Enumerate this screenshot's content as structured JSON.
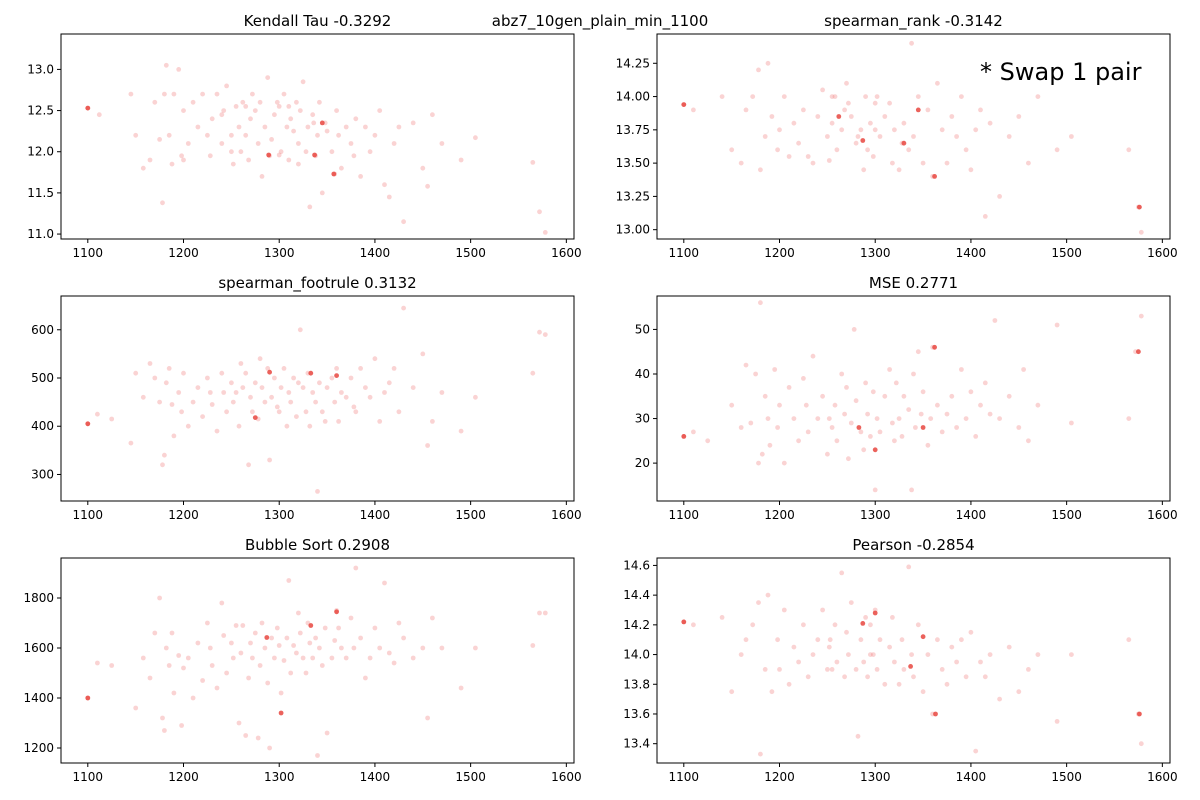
{
  "figure": {
    "suptitle": "abz7_10gen_plain_min_1100",
    "annotation": "* Swap 1 pair",
    "point_color": "#f08080",
    "highlight_color": "#e8473f"
  },
  "chart_data": [
    {
      "type": "scatter",
      "title": "Kendall Tau -0.3292",
      "xlim": [
        1072,
        1608
      ],
      "ylim": [
        10.94,
        13.43
      ],
      "xticks": [
        1100,
        1200,
        1300,
        1400,
        1500,
        1600
      ],
      "yticks": [
        11.0,
        11.5,
        12.0,
        12.5,
        13.0
      ],
      "ytick_decimals": 1,
      "x": [
        1100,
        1112,
        1145,
        1150,
        1158,
        1165,
        1170,
        1175,
        1178,
        1180,
        1182,
        1185,
        1188,
        1190,
        1195,
        1198,
        1200,
        1205,
        1210,
        1215,
        1220,
        1225,
        1228,
        1230,
        1235,
        1240,
        1242,
        1245,
        1250,
        1252,
        1255,
        1258,
        1260,
        1262,
        1265,
        1268,
        1270,
        1272,
        1275,
        1278,
        1280,
        1282,
        1285,
        1288,
        1290,
        1292,
        1295,
        1298,
        1300,
        1302,
        1305,
        1308,
        1310,
        1312,
        1315,
        1318,
        1320,
        1322,
        1325,
        1328,
        1330,
        1332,
        1335,
        1338,
        1340,
        1342,
        1345,
        1348,
        1350,
        1355,
        1358,
        1360,
        1362,
        1365,
        1370,
        1375,
        1378,
        1380,
        1385,
        1390,
        1395,
        1400,
        1405,
        1410,
        1415,
        1420,
        1425,
        1430,
        1440,
        1450,
        1455,
        1460,
        1470,
        1490,
        1505,
        1565,
        1572,
        1578,
        1200,
        1250,
        1300,
        1320,
        1336,
        1310,
        1265,
        1240
      ],
      "y": [
        12.53,
        12.45,
        12.7,
        12.2,
        11.8,
        11.9,
        12.6,
        12.15,
        11.38,
        12.7,
        13.05,
        12.2,
        11.85,
        12.7,
        13.0,
        11.95,
        12.5,
        12.1,
        12.6,
        12.3,
        12.7,
        12.2,
        11.95,
        12.4,
        12.7,
        12.1,
        12.5,
        12.8,
        12.2,
        11.85,
        12.55,
        12.3,
        12.0,
        12.6,
        12.2,
        11.9,
        12.4,
        12.7,
        12.5,
        12.1,
        12.6,
        11.7,
        12.3,
        12.9,
        11.95,
        12.15,
        12.45,
        12.6,
        12.55,
        12.0,
        12.7,
        12.3,
        11.9,
        12.4,
        12.25,
        12.6,
        12.1,
        12.5,
        12.85,
        12.0,
        12.3,
        11.33,
        12.45,
        11.95,
        12.2,
        12.6,
        11.5,
        12.35,
        12.25,
        12.0,
        11.73,
        12.5,
        12.2,
        11.8,
        12.3,
        12.1,
        11.95,
        12.4,
        11.7,
        12.3,
        12.0,
        12.2,
        12.5,
        11.6,
        11.45,
        12.1,
        12.3,
        11.15,
        12.35,
        11.8,
        11.58,
        12.45,
        12.1,
        11.9,
        12.17,
        11.87,
        11.27,
        11.02,
        11.9,
        12.0,
        11.96,
        11.85,
        12.35,
        12.55,
        12.55,
        12.45
      ],
      "highlight": {
        "x": [
          1100,
          1289,
          1337,
          1345,
          1357
        ],
        "y": [
          12.53,
          11.96,
          11.96,
          12.35,
          11.73
        ]
      }
    },
    {
      "type": "scatter",
      "title": "spearman_rank -0.3142",
      "xlim": [
        1072,
        1608
      ],
      "ylim": [
        12.93,
        14.47
      ],
      "xticks": [
        1100,
        1200,
        1300,
        1400,
        1500,
        1600
      ],
      "yticks": [
        13.0,
        13.25,
        13.5,
        13.75,
        14.0,
        14.25
      ],
      "ytick_decimals": 2,
      "x": [
        1100,
        1110,
        1140,
        1150,
        1160,
        1165,
        1172,
        1178,
        1180,
        1185,
        1188,
        1192,
        1198,
        1200,
        1205,
        1210,
        1215,
        1220,
        1225,
        1230,
        1235,
        1240,
        1245,
        1250,
        1252,
        1255,
        1258,
        1260,
        1265,
        1268,
        1270,
        1272,
        1275,
        1280,
        1282,
        1285,
        1288,
        1290,
        1292,
        1295,
        1298,
        1300,
        1302,
        1305,
        1310,
        1315,
        1318,
        1320,
        1325,
        1328,
        1330,
        1335,
        1338,
        1340,
        1345,
        1350,
        1355,
        1360,
        1365,
        1370,
        1375,
        1380,
        1385,
        1390,
        1395,
        1400,
        1405,
        1410,
        1415,
        1420,
        1430,
        1440,
        1450,
        1460,
        1470,
        1490,
        1505,
        1565,
        1575,
        1578,
        1255,
        1300
      ],
      "y": [
        13.94,
        13.9,
        14.0,
        13.6,
        13.5,
        13.9,
        14.0,
        14.2,
        13.45,
        13.7,
        14.25,
        13.85,
        13.6,
        13.75,
        14.0,
        13.55,
        13.8,
        13.65,
        13.9,
        13.55,
        13.5,
        13.85,
        14.05,
        13.7,
        13.52,
        13.8,
        14.0,
        13.6,
        13.75,
        13.9,
        14.1,
        13.95,
        13.85,
        13.65,
        13.7,
        13.75,
        13.45,
        14.0,
        13.6,
        13.8,
        13.55,
        13.95,
        14.0,
        13.7,
        13.85,
        13.95,
        13.5,
        13.75,
        13.45,
        13.65,
        13.8,
        13.6,
        14.4,
        13.7,
        14.0,
        13.5,
        13.9,
        13.4,
        14.1,
        13.75,
        13.5,
        13.85,
        13.7,
        14.0,
        13.6,
        13.45,
        13.75,
        13.9,
        13.1,
        13.8,
        13.25,
        13.7,
        13.85,
        13.5,
        14.0,
        13.6,
        13.7,
        13.6,
        13.17,
        12.98,
        14.0,
        13.75
      ],
      "highlight": {
        "x": [
          1100,
          1262,
          1287,
          1330,
          1345,
          1362,
          1576
        ],
        "y": [
          13.94,
          13.85,
          13.67,
          13.65,
          13.9,
          13.4,
          13.17
        ]
      }
    },
    {
      "type": "scatter",
      "title": "spearman_footrule 0.3132",
      "xlim": [
        1072,
        1608
      ],
      "ylim": [
        245,
        670
      ],
      "xticks": [
        1100,
        1200,
        1300,
        1400,
        1500,
        1600
      ],
      "yticks": [
        300,
        400,
        500,
        600
      ],
      "ytick_decimals": 0,
      "x": [
        1100,
        1110,
        1125,
        1145,
        1150,
        1158,
        1165,
        1170,
        1175,
        1178,
        1180,
        1182,
        1185,
        1188,
        1190,
        1195,
        1198,
        1200,
        1205,
        1210,
        1215,
        1220,
        1225,
        1228,
        1230,
        1235,
        1240,
        1242,
        1245,
        1250,
        1252,
        1255,
        1258,
        1260,
        1262,
        1265,
        1268,
        1270,
        1272,
        1275,
        1278,
        1280,
        1282,
        1285,
        1288,
        1290,
        1292,
        1295,
        1298,
        1300,
        1302,
        1305,
        1308,
        1310,
        1312,
        1315,
        1318,
        1320,
        1322,
        1325,
        1328,
        1330,
        1332,
        1335,
        1338,
        1340,
        1342,
        1345,
        1348,
        1350,
        1355,
        1358,
        1360,
        1362,
        1365,
        1370,
        1375,
        1378,
        1380,
        1385,
        1390,
        1395,
        1400,
        1405,
        1410,
        1415,
        1420,
        1425,
        1430,
        1440,
        1450,
        1455,
        1460,
        1470,
        1490,
        1505,
        1565,
        1572,
        1578
      ],
      "y": [
        405,
        425,
        415,
        365,
        510,
        460,
        530,
        500,
        450,
        320,
        340,
        490,
        520,
        445,
        380,
        470,
        430,
        510,
        400,
        450,
        480,
        420,
        500,
        470,
        445,
        390,
        510,
        470,
        430,
        490,
        450,
        470,
        400,
        530,
        480,
        510,
        320,
        460,
        430,
        490,
        415,
        540,
        480,
        450,
        520,
        330,
        460,
        500,
        440,
        430,
        480,
        520,
        400,
        470,
        450,
        500,
        420,
        490,
        600,
        480,
        430,
        510,
        400,
        470,
        450,
        265,
        490,
        430,
        410,
        480,
        500,
        450,
        520,
        410,
        470,
        460,
        500,
        440,
        430,
        520,
        480,
        460,
        540,
        410,
        470,
        490,
        520,
        430,
        645,
        480,
        550,
        360,
        410,
        470,
        390,
        460,
        510,
        595,
        590
      ],
      "highlight": {
        "x": [
          1100,
          1275,
          1290,
          1333,
          1360
        ],
        "y": [
          405,
          418,
          512,
          510,
          505
        ]
      }
    },
    {
      "type": "scatter",
      "title": "MSE 0.2771",
      "xlim": [
        1072,
        1608
      ],
      "ylim": [
        11.5,
        57.5
      ],
      "xticks": [
        1100,
        1200,
        1300,
        1400,
        1500,
        1600
      ],
      "yticks": [
        20,
        30,
        40,
        50
      ],
      "ytick_decimals": 0,
      "x": [
        1100,
        1110,
        1125,
        1150,
        1160,
        1165,
        1170,
        1175,
        1178,
        1180,
        1182,
        1185,
        1188,
        1190,
        1195,
        1198,
        1200,
        1205,
        1210,
        1215,
        1220,
        1225,
        1228,
        1230,
        1235,
        1240,
        1245,
        1250,
        1252,
        1255,
        1258,
        1260,
        1265,
        1268,
        1270,
        1272,
        1275,
        1278,
        1280,
        1285,
        1288,
        1290,
        1292,
        1295,
        1298,
        1300,
        1302,
        1305,
        1310,
        1315,
        1318,
        1320,
        1322,
        1325,
        1328,
        1330,
        1335,
        1338,
        1340,
        1342,
        1345,
        1348,
        1350,
        1355,
        1358,
        1360,
        1365,
        1370,
        1375,
        1380,
        1385,
        1390,
        1395,
        1400,
        1405,
        1410,
        1415,
        1420,
        1425,
        1430,
        1440,
        1450,
        1455,
        1460,
        1470,
        1490,
        1505,
        1565,
        1572,
        1578
      ],
      "y": [
        26,
        27,
        25,
        33,
        28,
        42,
        29,
        40,
        20,
        56,
        22,
        35,
        30,
        24,
        41,
        28,
        33,
        20,
        37,
        30,
        25,
        39,
        33,
        27,
        44,
        30,
        35,
        22,
        30,
        28,
        33,
        25,
        40,
        31,
        37,
        21,
        29,
        50,
        34,
        27,
        23,
        38,
        31,
        26,
        36,
        14,
        30,
        27,
        35,
        41,
        29,
        25,
        38,
        30,
        26,
        35,
        32,
        14,
        40,
        28,
        45,
        31,
        36,
        24,
        30,
        46,
        33,
        27,
        31,
        35,
        28,
        41,
        30,
        36,
        26,
        33,
        38,
        31,
        52,
        30,
        35,
        28,
        41,
        25,
        33,
        51,
        29,
        30,
        45,
        53
      ],
      "highlight": {
        "x": [
          1100,
          1283,
          1300,
          1350,
          1362,
          1575
        ],
        "y": [
          26,
          28,
          23,
          28,
          46,
          45
        ]
      }
    },
    {
      "type": "scatter",
      "title": "Bubble Sort 0.2908",
      "xlim": [
        1072,
        1608
      ],
      "ylim": [
        1140,
        1960
      ],
      "xticks": [
        1100,
        1200,
        1300,
        1400,
        1500,
        1600
      ],
      "yticks": [
        1200,
        1400,
        1600,
        1800
      ],
      "ytick_decimals": 0,
      "x": [
        1100,
        1110,
        1125,
        1150,
        1158,
        1165,
        1170,
        1175,
        1178,
        1180,
        1182,
        1185,
        1188,
        1190,
        1195,
        1198,
        1200,
        1205,
        1210,
        1215,
        1220,
        1225,
        1228,
        1230,
        1235,
        1240,
        1242,
        1245,
        1250,
        1252,
        1255,
        1258,
        1260,
        1262,
        1265,
        1268,
        1270,
        1272,
        1275,
        1278,
        1280,
        1282,
        1285,
        1288,
        1290,
        1292,
        1295,
        1298,
        1300,
        1302,
        1305,
        1308,
        1310,
        1312,
        1315,
        1318,
        1320,
        1322,
        1325,
        1328,
        1330,
        1332,
        1335,
        1338,
        1340,
        1342,
        1345,
        1348,
        1350,
        1355,
        1358,
        1360,
        1362,
        1365,
        1370,
        1375,
        1378,
        1380,
        1385,
        1390,
        1395,
        1400,
        1405,
        1410,
        1415,
        1420,
        1425,
        1430,
        1440,
        1450,
        1455,
        1460,
        1470,
        1490,
        1505,
        1565,
        1572,
        1578
      ],
      "y": [
        1400,
        1540,
        1530,
        1360,
        1560,
        1480,
        1660,
        1800,
        1320,
        1270,
        1600,
        1530,
        1660,
        1420,
        1570,
        1290,
        1520,
        1560,
        1400,
        1620,
        1470,
        1700,
        1600,
        1530,
        1440,
        1780,
        1650,
        1500,
        1620,
        1560,
        1690,
        1300,
        1580,
        1690,
        1250,
        1480,
        1620,
        1560,
        1660,
        1240,
        1530,
        1700,
        1600,
        1460,
        1200,
        1640,
        1560,
        1680,
        1610,
        1420,
        1550,
        1640,
        1870,
        1500,
        1610,
        1580,
        1740,
        1660,
        1560,
        1500,
        1700,
        1620,
        1560,
        1640,
        1170,
        1600,
        1530,
        1680,
        1260,
        1560,
        1630,
        1750,
        1680,
        1600,
        1560,
        1720,
        1600,
        1920,
        1640,
        1480,
        1560,
        1680,
        1600,
        1860,
        1580,
        1540,
        1700,
        1640,
        1560,
        1600,
        1320,
        1720,
        1600,
        1440,
        1600,
        1610,
        1740,
        1740
      ],
      "highlight": {
        "x": [
          1100,
          1287,
          1302,
          1333,
          1360
        ],
        "y": [
          1400,
          1642,
          1340,
          1690,
          1745
        ]
      }
    },
    {
      "type": "scatter",
      "title": "Pearson -0.2854",
      "xlim": [
        1072,
        1608
      ],
      "ylim": [
        13.27,
        14.65
      ],
      "xticks": [
        1100,
        1200,
        1300,
        1400,
        1500,
        1600
      ],
      "yticks": [
        13.4,
        13.6,
        13.8,
        14.0,
        14.2,
        14.4,
        14.6
      ],
      "ytick_decimals": 1,
      "x": [
        1100,
        1110,
        1140,
        1150,
        1160,
        1165,
        1172,
        1178,
        1180,
        1185,
        1188,
        1192,
        1198,
        1200,
        1205,
        1210,
        1215,
        1220,
        1225,
        1230,
        1235,
        1240,
        1245,
        1250,
        1252,
        1255,
        1258,
        1260,
        1265,
        1268,
        1270,
        1272,
        1275,
        1280,
        1282,
        1285,
        1288,
        1290,
        1292,
        1295,
        1298,
        1300,
        1302,
        1305,
        1310,
        1315,
        1318,
        1320,
        1325,
        1328,
        1330,
        1335,
        1338,
        1340,
        1345,
        1350,
        1355,
        1360,
        1365,
        1370,
        1375,
        1380,
        1385,
        1390,
        1395,
        1400,
        1405,
        1410,
        1415,
        1420,
        1430,
        1440,
        1450,
        1460,
        1470,
        1490,
        1505,
        1565,
        1575,
        1578,
        1253,
        1295
      ],
      "y": [
        14.22,
        14.2,
        14.25,
        13.75,
        14.0,
        14.1,
        14.2,
        14.35,
        13.33,
        13.9,
        14.4,
        13.75,
        14.1,
        13.9,
        14.3,
        13.8,
        14.05,
        13.95,
        14.2,
        13.85,
        14.0,
        14.1,
        14.3,
        13.9,
        14.05,
        13.9,
        14.2,
        13.95,
        14.55,
        13.85,
        14.15,
        14.0,
        14.35,
        13.9,
        13.45,
        14.1,
        13.95,
        14.25,
        13.85,
        14.2,
        14.0,
        14.3,
        13.9,
        14.1,
        13.8,
        14.05,
        14.25,
        13.95,
        13.8,
        14.1,
        13.9,
        14.59,
        14.0,
        13.85,
        14.2,
        13.75,
        14.0,
        13.6,
        14.1,
        13.9,
        13.8,
        14.05,
        13.95,
        14.1,
        13.85,
        14.15,
        13.35,
        13.95,
        13.85,
        14.0,
        13.7,
        14.05,
        13.75,
        13.9,
        14.0,
        13.55,
        14.0,
        14.1,
        13.6,
        13.4,
        14.1,
        14.0
      ],
      "highlight": {
        "x": [
          1100,
          1287,
          1300,
          1337,
          1350,
          1363,
          1576
        ],
        "y": [
          14.22,
          14.21,
          14.28,
          13.92,
          14.12,
          13.6,
          13.6
        ]
      }
    }
  ]
}
